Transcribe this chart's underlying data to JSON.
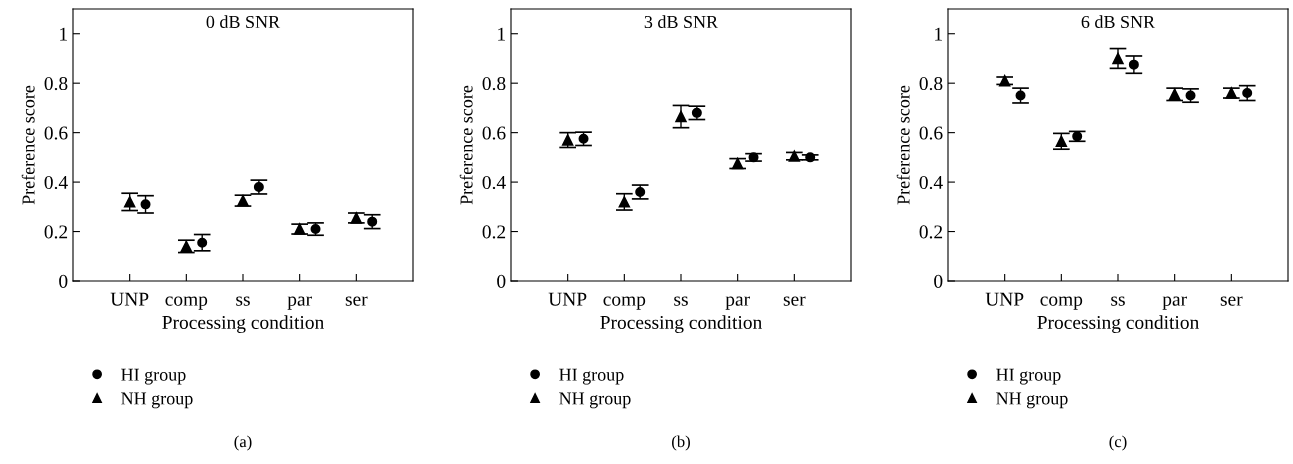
{
  "chart_data": [
    {
      "type": "scatter",
      "title": "0 dB SNR",
      "xlabel": "Processing condition",
      "ylabel": "Preference score",
      "categories": [
        "UNP",
        "comp",
        "ss",
        "par",
        "ser"
      ],
      "ylim": [
        0,
        1.1
      ],
      "yticks": [
        0,
        0.2,
        0.4,
        0.6,
        0.8,
        1
      ],
      "legend": "bottom left",
      "annotations": [
        "(a)"
      ],
      "series": [
        {
          "name": "NH group",
          "color": "#000000",
          "marker": "triangle",
          "values": [
            0.32,
            0.14,
            0.325,
            0.21,
            0.255
          ],
          "errors": [
            0.035,
            0.025,
            0.022,
            0.02,
            0.02
          ]
        },
        {
          "name": "HI group",
          "color": "#000000",
          "marker": "circle",
          "values": [
            0.31,
            0.155,
            0.38,
            0.21,
            0.24
          ],
          "errors": [
            0.035,
            0.033,
            0.028,
            0.025,
            0.028
          ]
        }
      ]
    },
    {
      "type": "scatter",
      "title": "3 dB SNR",
      "xlabel": "Processing condition",
      "ylabel": "Preference score",
      "categories": [
        "UNP",
        "comp",
        "ss",
        "par",
        "ser"
      ],
      "ylim": [
        0,
        1.1
      ],
      "yticks": [
        0,
        0.2,
        0.4,
        0.6,
        0.8,
        1
      ],
      "legend": "bottom left",
      "annotations": [
        "(b)"
      ],
      "series": [
        {
          "name": "NH group",
          "color": "#000000",
          "marker": "triangle",
          "values": [
            0.57,
            0.32,
            0.665,
            0.475,
            0.505
          ],
          "errors": [
            0.03,
            0.033,
            0.045,
            0.02,
            0.015
          ]
        },
        {
          "name": "HI group",
          "color": "#000000",
          "marker": "circle",
          "values": [
            0.575,
            0.36,
            0.68,
            0.5,
            0.5
          ],
          "errors": [
            0.027,
            0.028,
            0.027,
            0.015,
            0.01
          ]
        }
      ]
    },
    {
      "type": "scatter",
      "title": "6 dB SNR",
      "xlabel": "Processing condition",
      "ylabel": "Preference score",
      "categories": [
        "UNP",
        "comp",
        "ss",
        "par",
        "ser"
      ],
      "ylim": [
        0,
        1.1
      ],
      "yticks": [
        0,
        0.2,
        0.4,
        0.6,
        0.8,
        1
      ],
      "legend": "bottom left",
      "annotations": [
        "(c)"
      ],
      "series": [
        {
          "name": "NH group",
          "color": "#000000",
          "marker": "triangle",
          "values": [
            0.81,
            0.565,
            0.9,
            0.755,
            0.76
          ],
          "errors": [
            0.015,
            0.032,
            0.04,
            0.025,
            0.02
          ]
        },
        {
          "name": "HI group",
          "color": "#000000",
          "marker": "circle",
          "values": [
            0.75,
            0.585,
            0.875,
            0.75,
            0.76
          ],
          "errors": [
            0.03,
            0.02,
            0.035,
            0.027,
            0.03
          ]
        }
      ]
    }
  ]
}
